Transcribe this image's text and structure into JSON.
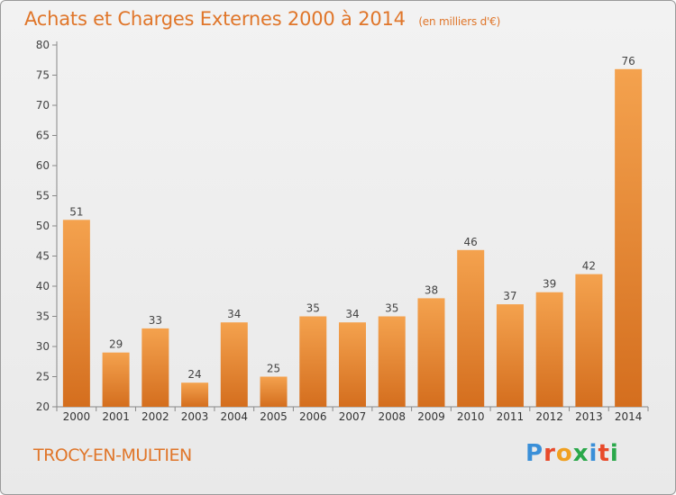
{
  "chart_data": {
    "type": "bar",
    "title": "Achats et Charges Externes 2000 à 2014",
    "subtitle": "(en milliers d'€)",
    "categories": [
      "2000",
      "2001",
      "2002",
      "2003",
      "2004",
      "2005",
      "2006",
      "2007",
      "2008",
      "2009",
      "2010",
      "2011",
      "2012",
      "2013",
      "2014"
    ],
    "values": [
      51,
      29,
      33,
      24,
      34,
      25,
      35,
      34,
      35,
      38,
      46,
      37,
      39,
      42,
      76
    ],
    "ylim": [
      20,
      80
    ],
    "yticks": [
      20,
      25,
      30,
      35,
      40,
      45,
      50,
      55,
      60,
      65,
      70,
      75,
      80
    ],
    "grid": false,
    "bar_color": "#f0913a",
    "bar_color_dark": "#d97524"
  },
  "footer": {
    "city": "TROCY-EN-MULTIEN",
    "logo_letters": [
      "P",
      "r",
      "o",
      "x",
      "i",
      "t",
      "i"
    ],
    "logo_colors": [
      "#3a8fd8",
      "#e84a2a",
      "#f0a020",
      "#2aa84a",
      "#3a8fd8",
      "#e84a2a",
      "#2aa84a"
    ]
  }
}
